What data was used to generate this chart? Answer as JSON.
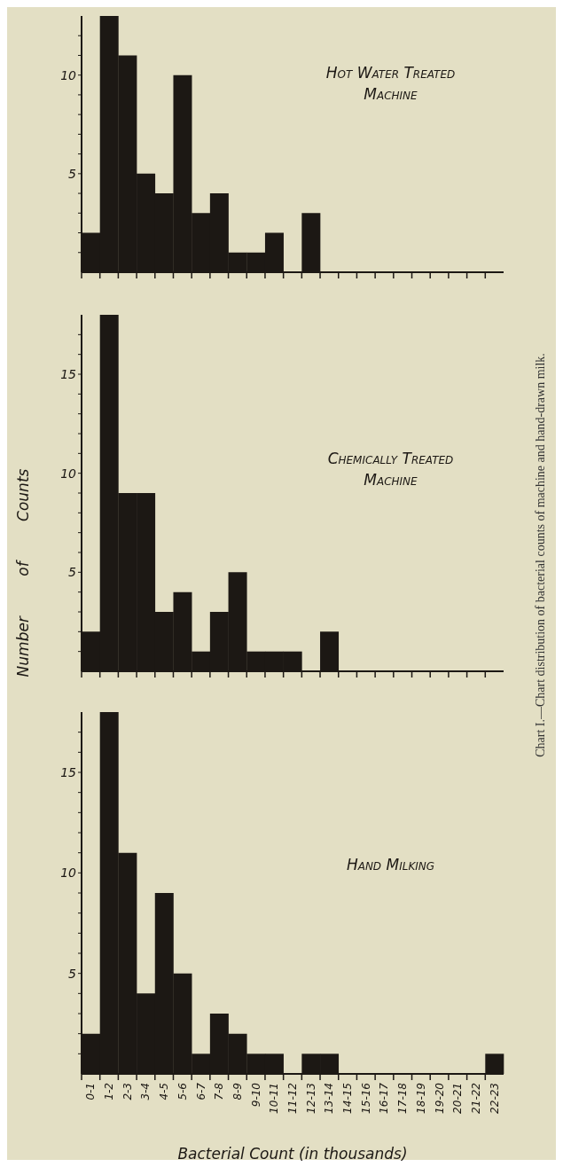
{
  "chart_data": [
    {
      "type": "bar",
      "title": "Hot Water Treated Machine",
      "categories": [
        null,
        null,
        null,
        null,
        null,
        null,
        null,
        null,
        null,
        null,
        null,
        null,
        null,
        null,
        null,
        null,
        null,
        null,
        null,
        null,
        null,
        null,
        null
      ],
      "values": [
        2,
        13,
        11,
        5,
        4,
        10,
        3,
        4,
        1,
        1,
        2,
        0,
        3,
        0,
        0,
        0,
        0,
        0,
        0,
        0,
        0,
        0,
        0
      ],
      "color": "#1c1814",
      "ylim": [
        0,
        13
      ],
      "yticks": [
        {
          "value": 1,
          "label": null
        },
        {
          "value": 2,
          "label": null
        },
        {
          "value": 3,
          "label": null
        },
        {
          "value": 4,
          "label": null
        },
        5,
        {
          "value": 6,
          "label": null
        },
        {
          "value": 7,
          "label": null
        },
        {
          "value": 8,
          "label": null
        },
        {
          "value": 9,
          "label": null
        },
        10,
        {
          "value": 11,
          "label": null
        },
        {
          "value": 12,
          "label": null
        }
      ],
      "tick_labels": "y"
    },
    {
      "type": "bar",
      "title": "Chemically Treated Machine",
      "ylabel": "Number of Counts",
      "annotations": [
        "Chart I.—Chart distribution of bacterial counts of machine and hand-drawn milk."
      ],
      "categories": [
        null,
        null,
        null,
        null,
        null,
        null,
        null,
        null,
        null,
        null,
        null,
        null,
        null,
        null,
        null,
        null,
        null,
        null,
        null,
        null,
        null,
        null,
        null
      ],
      "values": [
        2,
        18,
        9,
        9,
        3,
        4,
        1,
        3,
        5,
        1,
        1,
        1,
        0,
        2,
        0,
        0,
        0,
        0,
        0,
        0,
        0,
        0,
        0
      ],
      "color": "#1c1814",
      "ylim": [
        0,
        18
      ],
      "yticks": [
        {
          "value": 1,
          "label": null
        },
        {
          "value": 2,
          "label": null
        },
        {
          "value": 3,
          "label": null
        },
        {
          "value": 4,
          "label": null
        },
        5,
        {
          "value": 6,
          "label": null
        },
        {
          "value": 7,
          "label": null
        },
        {
          "value": 8,
          "label": null
        },
        {
          "value": 9,
          "label": null
        },
        10,
        {
          "value": 11,
          "label": null
        },
        {
          "value": 12,
          "label": null
        },
        {
          "value": 13,
          "label": null
        },
        {
          "value": 14,
          "label": null
        },
        15,
        {
          "value": 16,
          "label": null
        },
        {
          "value": 17,
          "label": null
        }
      ],
      "tick_labels": "y"
    },
    {
      "type": "bar",
      "title": "Hand Milking",
      "xlabel": "Bacterial Count (in thousands)",
      "categories": [
        "0-1",
        "1-2",
        "2-3",
        "3-4",
        "4-5",
        "5-6",
        "6-7",
        "7-8",
        "8-9",
        "9-10",
        "10-11",
        "11-12",
        "12-13",
        "13-14",
        "14-15",
        "15-16",
        "16-17",
        "17-18",
        "18-19",
        "19-20",
        "20-21",
        "21-22",
        "22-23"
      ],
      "values": [
        2,
        18,
        11,
        4,
        9,
        5,
        1,
        3,
        2,
        1,
        1,
        0,
        1,
        1,
        0,
        0,
        0,
        0,
        0,
        0,
        0,
        0,
        1
      ],
      "color": "#1c1814",
      "ylim": [
        0,
        18
      ],
      "yticks": [
        {
          "value": 1,
          "label": null
        },
        {
          "value": 2,
          "label": null
        },
        {
          "value": 3,
          "label": null
        },
        {
          "value": 4,
          "label": null
        },
        5,
        {
          "value": 6,
          "label": null
        },
        {
          "value": 7,
          "label": null
        },
        {
          "value": 8,
          "label": null
        },
        {
          "value": 9,
          "label": null
        },
        10,
        {
          "value": 11,
          "label": null
        },
        {
          "value": 12,
          "label": null
        },
        {
          "value": 13,
          "label": null
        },
        {
          "value": 14,
          "label": null
        },
        15,
        {
          "value": 16,
          "label": null
        },
        {
          "value": 17,
          "label": null
        }
      ]
    }
  ]
}
